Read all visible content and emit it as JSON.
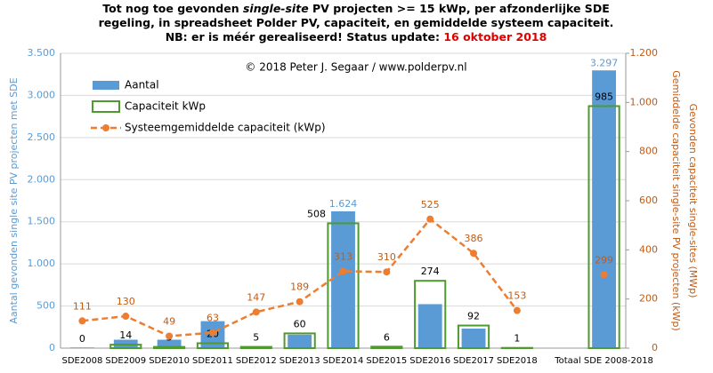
{
  "chart_data": {
    "type": "combo",
    "title": [
      [
        "Tot nog toe gevonden ",
        "single-site",
        " PV projecten >= 15 kWp, per afzonderlijke SDE"
      ],
      [
        "regeling, in spreadsheet Polder PV, capaciteit, en gemiddelde systeem capaciteit."
      ],
      [
        "NB: er is méér gerealiseerd! Status update: ",
        "16 oktober 2018"
      ]
    ],
    "annotation": "© 2018 Peter J. Segaar / www.polderpv.nl",
    "ylabel": "Aantal gevonden single site PV projecten met SDE",
    "y2label": [
      "Gemiddelde capaciteit single-site PV projecten (kWp)",
      "Gevonden capaciteit single-sites (MWp)"
    ],
    "categories": [
      "SDE2008",
      "SDE2009",
      "SDE2010",
      "SDE2011",
      "SDE2012",
      "SDE2013",
      "SDE2014",
      "SDE2015",
      "SDE2016",
      "SDE2017",
      "SDE2018",
      null,
      "Totaal SDE 2008-2018"
    ],
    "series": [
      {
        "name": "Aantal",
        "color": "#5b9bd5",
        "kind": "bar",
        "values": [
          8,
          100,
          100,
          320,
          10,
          160,
          1624,
          10,
          522,
          232,
          5,
          null,
          3297
        ],
        "value_labels": [
          null,
          null,
          null,
          null,
          null,
          null,
          "1.624",
          null,
          null,
          null,
          null,
          null,
          "3.297"
        ]
      },
      {
        "name": "Capaciteit kWp",
        "color": "#4e9a2e",
        "kind": "outline",
        "axis": "y2",
        "values": [
          0,
          14,
          5,
          20,
          5,
          60,
          508,
          6,
          274,
          92,
          1,
          null,
          985
        ]
      },
      {
        "name": "Systeemgemiddelde capaciteit (kWp)",
        "color": "#ed7d31",
        "kind": "line",
        "axis": "y2",
        "values": [
          111,
          130,
          49,
          63,
          147,
          189,
          313,
          310,
          525,
          386,
          153,
          null,
          299
        ]
      }
    ],
    "ylim": [
      0,
      3500
    ],
    "yticks": [
      0,
      500,
      {
        "value": 1000,
        "label": "1.000"
      },
      {
        "value": 1500,
        "label": "1.500"
      },
      {
        "value": 2000,
        "label": "2.000"
      },
      {
        "value": 2500,
        "label": "2.500"
      },
      {
        "value": 3000,
        "label": "3.000"
      },
      {
        "value": 3500,
        "label": "3.500"
      }
    ],
    "y2lim": [
      0,
      1200
    ],
    "y2ticks": [
      0,
      200,
      400,
      600,
      800,
      {
        "value": 1000,
        "label": "1.000"
      },
      {
        "value": 1200,
        "label": "1.200"
      }
    ],
    "grid": true
  }
}
